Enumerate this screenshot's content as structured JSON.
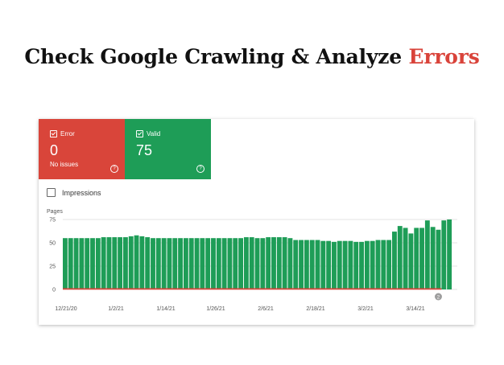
{
  "headline": {
    "main": "Check Google Crawling & Analyze ",
    "accent": "Errors"
  },
  "colors": {
    "error": "#d9453a",
    "valid": "#1e9d57",
    "accent": "#d9433a"
  },
  "tiles": [
    {
      "label": "Error",
      "value": "0",
      "subtitle": "No issues"
    },
    {
      "label": "Valid",
      "value": "75",
      "subtitle": ""
    }
  ],
  "impressions_label": "Impressions",
  "chart_data": {
    "type": "bar",
    "ylabel": "Pages",
    "ylim": [
      0,
      75
    ],
    "yticks": [
      0,
      25,
      50,
      75
    ],
    "xtick_labels": [
      "12/21/20",
      "1/2/21",
      "1/14/21",
      "1/26/21",
      "2/6/21",
      "2/18/21",
      "3/2/21",
      "3/14/21"
    ],
    "annotation": "2",
    "series": [
      {
        "color": "#1e9d57",
        "values": [
          55,
          55,
          55,
          55,
          55,
          55,
          55,
          56,
          56,
          56,
          56,
          56,
          57,
          58,
          57,
          56,
          55,
          55,
          55,
          55,
          55,
          55,
          55,
          55,
          55,
          55,
          55,
          55,
          55,
          55,
          55,
          55,
          55,
          56,
          56,
          55,
          55,
          56,
          56,
          56,
          56,
          55,
          53,
          53,
          53,
          53,
          53,
          52,
          52,
          51,
          52,
          52,
          52,
          51,
          51,
          52,
          52,
          53,
          53,
          53,
          62,
          68,
          66,
          60,
          66,
          66,
          74,
          67,
          64,
          74,
          75
        ]
      },
      {
        "color": "#d9453a",
        "values": [
          0,
          0,
          0,
          0,
          0,
          0,
          0,
          0,
          0,
          0,
          0,
          0,
          0,
          0,
          0,
          0,
          0,
          0,
          0,
          0,
          0,
          0,
          0,
          0,
          0,
          0,
          0,
          0,
          0,
          0,
          0,
          0,
          0,
          0,
          0,
          0,
          0,
          0,
          0,
          0,
          0,
          0,
          0,
          0,
          0,
          0,
          0,
          0,
          0,
          0,
          0,
          0,
          0,
          0,
          0,
          0,
          0,
          0,
          0,
          0,
          0,
          0,
          0,
          0,
          0,
          0,
          0,
          0,
          0,
          0,
          0
        ]
      }
    ]
  }
}
